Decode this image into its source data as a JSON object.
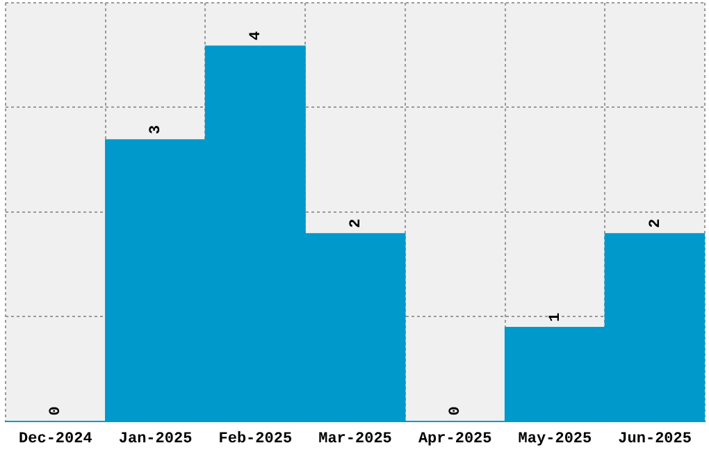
{
  "chart_data": {
    "type": "bar",
    "categories": [
      "Dec-2024",
      "Jan-2025",
      "Feb-2025",
      "Mar-2025",
      "Apr-2025",
      "May-2025",
      "Jun-2025"
    ],
    "values": [
      0,
      3,
      4,
      2,
      0,
      1,
      2
    ],
    "color": "#0099cc",
    "data_labels": true,
    "grid": true,
    "tick_labels": "x",
    "ylim": [
      0,
      4.46
    ],
    "yticks": [
      {
        "value": 1.115,
        "label": null
      },
      {
        "value": 2.23,
        "label": null
      },
      {
        "value": 3.345,
        "label": null
      },
      {
        "value": 4.46,
        "label": null
      }
    ]
  }
}
